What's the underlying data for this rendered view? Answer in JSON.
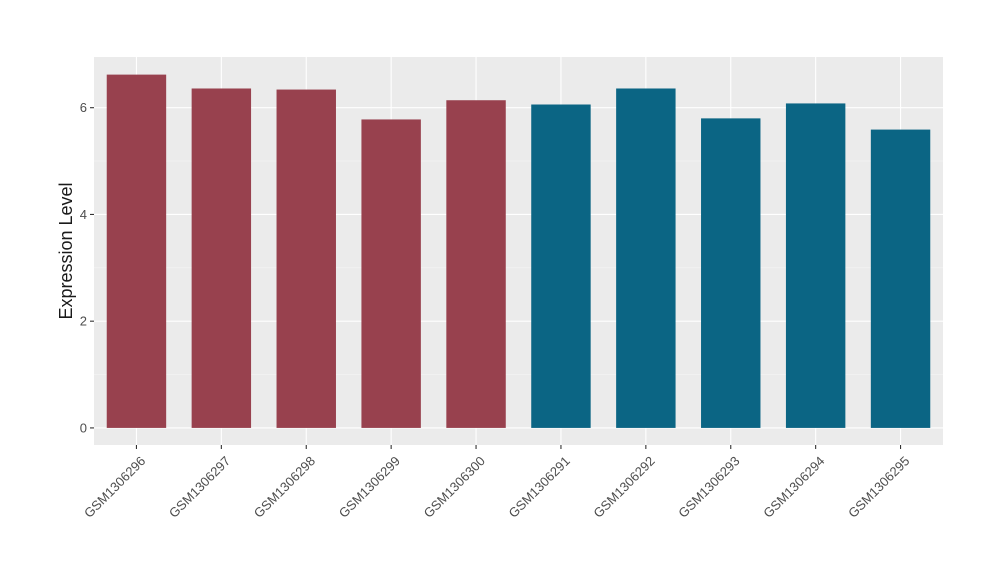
{
  "chart_data": {
    "type": "bar",
    "title": "",
    "xlabel": "",
    "ylabel": "Expression Level",
    "categories": [
      "GSM1306296",
      "GSM1306297",
      "GSM1306298",
      "GSM1306299",
      "GSM1306300",
      "GSM1306291",
      "GSM1306292",
      "GSM1306293",
      "GSM1306294",
      "GSM1306295"
    ],
    "values": [
      6.62,
      6.36,
      6.34,
      5.78,
      6.14,
      6.06,
      6.36,
      5.8,
      6.08,
      5.59
    ],
    "bar_colors": [
      "#98414e",
      "#98414e",
      "#98414e",
      "#98414e",
      "#98414e",
      "#0b6584",
      "#0b6584",
      "#0b6584",
      "#0b6584",
      "#0b6584"
    ],
    "ylim": [
      -0.32,
      6.95
    ],
    "yticks": [
      0,
      2,
      4,
      6
    ],
    "ytick_labels": [
      "0",
      "2",
      "4",
      "6"
    ],
    "grid": true,
    "legend": "none",
    "colors": {
      "panel_background": "#ebebeb",
      "grid_major": "#ffffff",
      "grid_minor": "#f5f5f5",
      "text": "#1a1a1a",
      "tick_label": "#4d4d4d",
      "tick": "#333333"
    }
  }
}
